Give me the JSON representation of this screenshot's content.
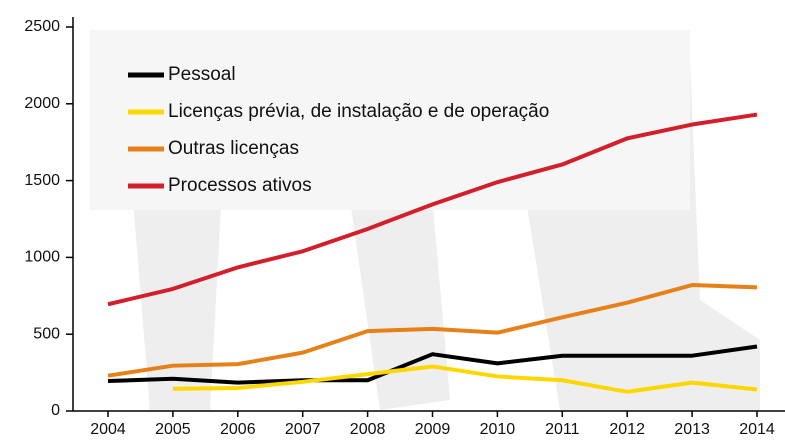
{
  "chart_data": {
    "type": "line",
    "categories": [
      "2004",
      "2005",
      "2006",
      "2007",
      "2008",
      "2009",
      "2010",
      "2011",
      "2012",
      "2013",
      "2014"
    ],
    "series": [
      {
        "name": "Pessoal",
        "color": "#000000",
        "values": [
          195,
          210,
          185,
          200,
          200,
          370,
          310,
          360,
          360,
          360,
          420
        ]
      },
      {
        "name": "Licenças prévia, de instalação e de operação",
        "color": "#ffd700",
        "values": [
          null,
          145,
          150,
          190,
          240,
          290,
          225,
          200,
          125,
          185,
          140
        ]
      },
      {
        "name": "Outras licenças",
        "color": "#e8801a",
        "values": [
          230,
          295,
          305,
          380,
          520,
          535,
          510,
          610,
          705,
          820,
          805
        ]
      },
      {
        "name": "Processos ativos",
        "color": "#d21f2b",
        "values": [
          695,
          795,
          935,
          1040,
          1185,
          1345,
          1490,
          1605,
          1775,
          1865,
          1930
        ]
      }
    ],
    "ylim": [
      0,
      2500
    ],
    "yticks": [
      0,
      500,
      1000,
      1500,
      2000,
      2500
    ],
    "grid": false,
    "legend": "upper left"
  }
}
